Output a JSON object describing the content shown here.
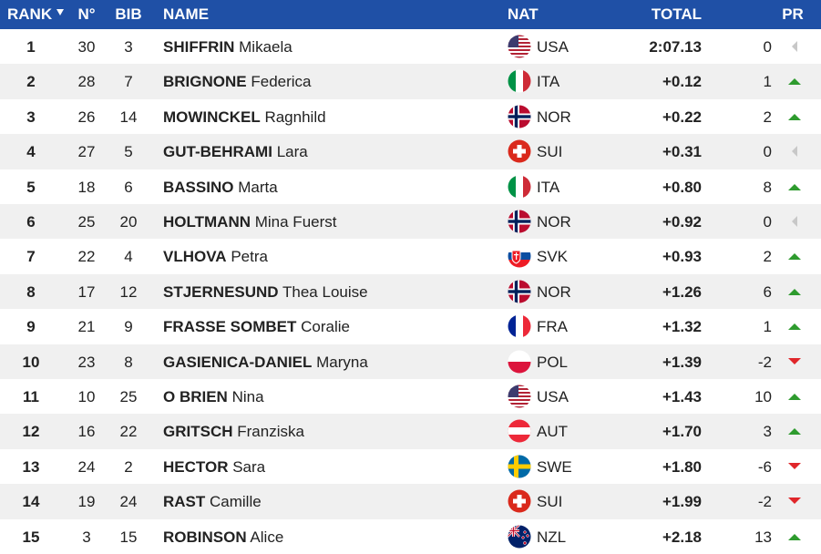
{
  "table": {
    "header": [
      "RANK",
      "N°",
      "BIB",
      "NAME",
      "NAT",
      "TOTAL",
      "PR"
    ],
    "rows": [
      {
        "rank": 1,
        "no": 30,
        "bib": 3,
        "surname": "SHIFFRIN",
        "firstname": "Mikaela",
        "nat": "USA",
        "total": "2:07.13",
        "pr": 0
      },
      {
        "rank": 2,
        "no": 28,
        "bib": 7,
        "surname": "BRIGNONE",
        "firstname": "Federica",
        "nat": "ITA",
        "total": "+0.12",
        "pr": 1
      },
      {
        "rank": 3,
        "no": 26,
        "bib": 14,
        "surname": "MOWINCKEL",
        "firstname": "Ragnhild",
        "nat": "NOR",
        "total": "+0.22",
        "pr": 2
      },
      {
        "rank": 4,
        "no": 27,
        "bib": 5,
        "surname": "GUT-BEHRAMI",
        "firstname": "Lara",
        "nat": "SUI",
        "total": "+0.31",
        "pr": 0
      },
      {
        "rank": 5,
        "no": 18,
        "bib": 6,
        "surname": "BASSINO",
        "firstname": "Marta",
        "nat": "ITA",
        "total": "+0.80",
        "pr": 8
      },
      {
        "rank": 6,
        "no": 25,
        "bib": 20,
        "surname": "HOLTMANN",
        "firstname": "Mina Fuerst",
        "nat": "NOR",
        "total": "+0.92",
        "pr": 0
      },
      {
        "rank": 7,
        "no": 22,
        "bib": 4,
        "surname": "VLHOVA",
        "firstname": "Petra",
        "nat": "SVK",
        "total": "+0.93",
        "pr": 2
      },
      {
        "rank": 8,
        "no": 17,
        "bib": 12,
        "surname": "STJERNESUND",
        "firstname": "Thea Louise",
        "nat": "NOR",
        "total": "+1.26",
        "pr": 6
      },
      {
        "rank": 9,
        "no": 21,
        "bib": 9,
        "surname": "FRASSE SOMBET",
        "firstname": "Coralie",
        "nat": "FRA",
        "total": "+1.32",
        "pr": 1
      },
      {
        "rank": 10,
        "no": 23,
        "bib": 8,
        "surname": "GASIENICA-DANIEL",
        "firstname": "Maryna",
        "nat": "POL",
        "total": "+1.39",
        "pr": -2
      },
      {
        "rank": 11,
        "no": 10,
        "bib": 25,
        "surname": "O BRIEN",
        "firstname": "Nina",
        "nat": "USA",
        "total": "+1.43",
        "pr": 10
      },
      {
        "rank": 12,
        "no": 16,
        "bib": 22,
        "surname": "GRITSCH",
        "firstname": "Franziska",
        "nat": "AUT",
        "total": "+1.70",
        "pr": 3
      },
      {
        "rank": 13,
        "no": 24,
        "bib": 2,
        "surname": "HECTOR",
        "firstname": "Sara",
        "nat": "SWE",
        "total": "+1.80",
        "pr": -6
      },
      {
        "rank": 14,
        "no": 19,
        "bib": 24,
        "surname": "RAST",
        "firstname": "Camille",
        "nat": "SUI",
        "total": "+1.99",
        "pr": -2
      },
      {
        "rank": 15,
        "no": 3,
        "bib": 15,
        "surname": "ROBINSON",
        "firstname": "Alice",
        "nat": "NZL",
        "total": "+2.18",
        "pr": 13
      }
    ]
  }
}
